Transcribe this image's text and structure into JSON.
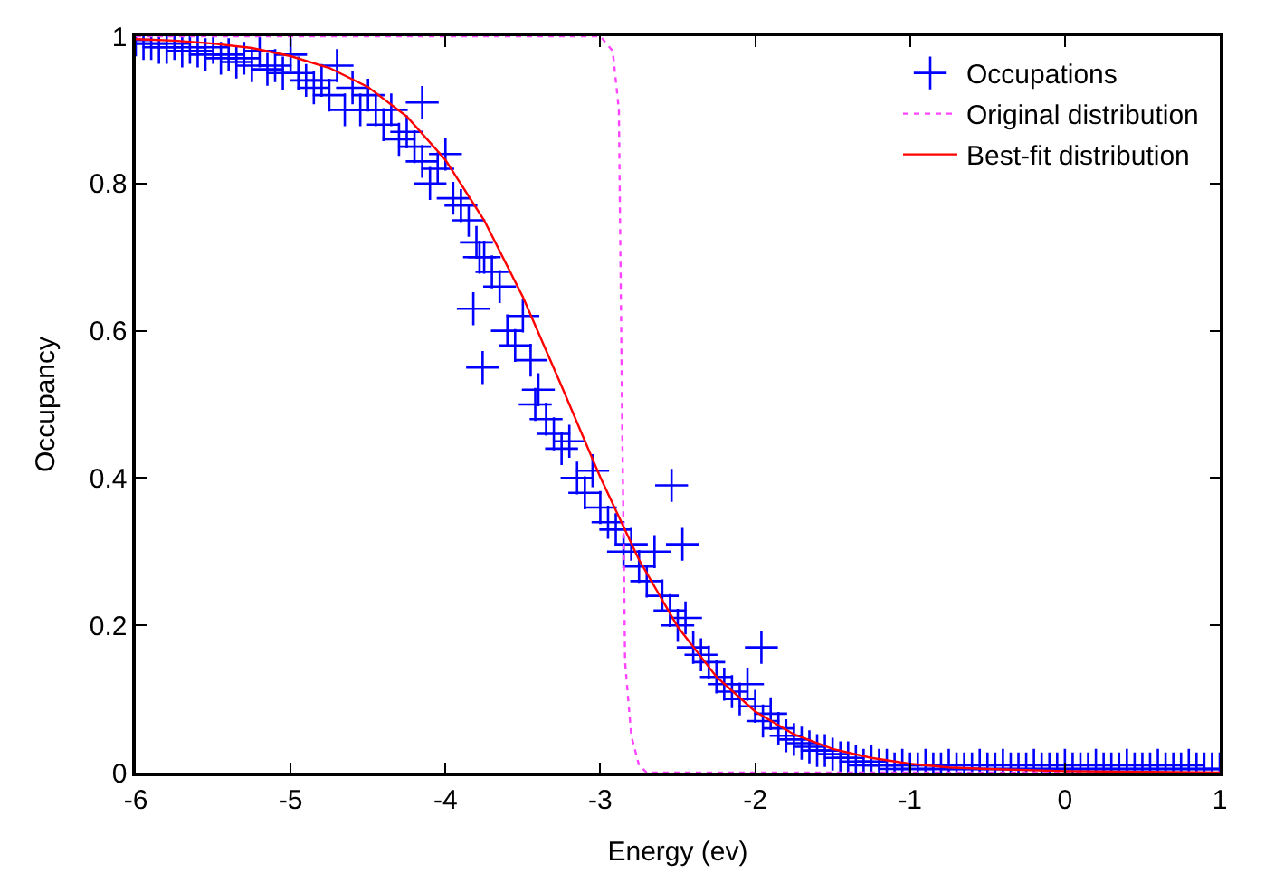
{
  "chart_data": {
    "type": "scatter",
    "xlabel": "Energy (ev)",
    "ylabel": "Occupancy",
    "xlim": [
      -6,
      1
    ],
    "xticks": [
      -6,
      -5,
      -4,
      -3,
      -2,
      -1,
      0,
      1
    ],
    "ylim": [
      0,
      1
    ],
    "yticks": [
      0,
      0.2,
      0.4,
      0.6,
      0.8,
      1
    ],
    "grid": false,
    "legend": "top right",
    "series": [
      {
        "name": "Occupations",
        "marker": "cross",
        "color": "#0000ff",
        "x": [
          -6,
          -5.95,
          -5.9,
          -5.85,
          -5.8,
          -5.75,
          -5.7,
          -5.65,
          -5.6,
          -5.55,
          -5.5,
          -5.45,
          -5.4,
          -5.35,
          -5.3,
          -5.25,
          -5.2,
          -5.15,
          -5.1,
          -5.05,
          -5.0,
          -4.95,
          -4.9,
          -4.85,
          -4.8,
          -4.75,
          -4.7,
          -4.65,
          -4.6,
          -4.55,
          -4.5,
          -4.45,
          -4.4,
          -4.35,
          -4.3,
          -4.25,
          -4.2,
          -4.15,
          -4.15,
          -4.1,
          -4.05,
          -4.0,
          -3.95,
          -3.9,
          -3.85,
          -3.82,
          -3.8,
          -3.78,
          -3.76,
          -3.75,
          -3.7,
          -3.65,
          -3.6,
          -3.55,
          -3.5,
          -3.45,
          -3.42,
          -3.4,
          -3.35,
          -3.3,
          -3.25,
          -3.2,
          -3.15,
          -3.1,
          -3.05,
          -3.0,
          -2.95,
          -2.9,
          -2.85,
          -2.8,
          -2.75,
          -2.7,
          -2.65,
          -2.6,
          -2.54,
          -2.55,
          -2.5,
          -2.47,
          -2.45,
          -2.4,
          -2.35,
          -2.3,
          -2.25,
          -2.2,
          -2.15,
          -2.1,
          -2.05,
          -2.0,
          -1.96,
          -1.95,
          -1.9,
          -1.85,
          -1.8,
          -1.75,
          -1.7,
          -1.65,
          -1.6,
          -1.55,
          -1.5,
          -1.45,
          -1.4,
          -1.35,
          -1.3,
          -1.25,
          -1.2,
          -1.15,
          -1.1,
          -1.05,
          -1.0,
          -0.95,
          -0.9,
          -0.85,
          -0.8,
          -0.75,
          -0.7,
          -0.65,
          -0.6,
          -0.55,
          -0.5,
          -0.45,
          -0.4,
          -0.35,
          -0.3,
          -0.25,
          -0.2,
          -0.15,
          -0.1,
          -0.05,
          0,
          0.05,
          0.1,
          0.15,
          0.2,
          0.25,
          0.3,
          0.35,
          0.4,
          0.45,
          0.5,
          0.55,
          0.6,
          0.65,
          0.7,
          0.75,
          0.8,
          0.85,
          0.9,
          0.95,
          1.0
        ],
        "values": [
          0.995,
          0.99,
          0.99,
          0.985,
          0.985,
          0.99,
          0.98,
          0.985,
          0.98,
          0.975,
          0.985,
          0.97,
          0.975,
          0.965,
          0.97,
          0.96,
          0.98,
          0.955,
          0.96,
          0.95,
          0.975,
          0.95,
          0.94,
          0.93,
          0.94,
          0.92,
          0.96,
          0.9,
          0.93,
          0.9,
          0.92,
          0.9,
          0.88,
          0.9,
          0.86,
          0.87,
          0.85,
          0.83,
          0.91,
          0.8,
          0.82,
          0.84,
          0.78,
          0.77,
          0.75,
          0.63,
          0.72,
          0.7,
          0.55,
          0.7,
          0.68,
          0.66,
          0.6,
          0.58,
          0.62,
          0.56,
          0.5,
          0.52,
          0.48,
          0.46,
          0.44,
          0.45,
          0.4,
          0.38,
          0.41,
          0.36,
          0.34,
          0.33,
          0.3,
          0.31,
          0.28,
          0.26,
          0.3,
          0.24,
          0.39,
          0.22,
          0.2,
          0.31,
          0.21,
          0.17,
          0.16,
          0.15,
          0.13,
          0.12,
          0.11,
          0.1,
          0.12,
          0.09,
          0.17,
          0.07,
          0.08,
          0.06,
          0.05,
          0.045,
          0.04,
          0.035,
          0.03,
          0.03,
          0.025,
          0.02,
          0.02,
          0.015,
          0.01,
          0.015,
          0.01,
          0.01,
          0.005,
          0.01,
          0.005,
          0.005,
          0.01,
          0.005,
          0.005,
          0.01,
          0.005,
          0.005,
          0.005,
          0.01,
          0.005,
          0.005,
          0.01,
          0.005,
          0.005,
          0.005,
          0.01,
          0.005,
          0.005,
          0.005,
          0.01,
          0.005,
          0.005,
          0.005,
          0.01,
          0.005,
          0.005,
          0.005,
          0.01,
          0.005,
          0.005,
          0.005,
          0.01,
          0.005,
          0.005,
          0.005,
          0.01,
          0.005,
          0.005,
          0.005,
          0.005
        ]
      },
      {
        "name": "Original distribution",
        "type": "line",
        "marker": "none",
        "line_style": "dotted",
        "color": "#ff44ff",
        "x": [
          -6,
          -3.0,
          -2.92,
          -2.88,
          -2.86,
          -2.84,
          -2.8,
          -2.75,
          -2.7,
          1
        ],
        "values": [
          1,
          1,
          0.98,
          0.9,
          0.5,
          0.15,
          0.05,
          0.01,
          0,
          0
        ]
      },
      {
        "name": "Best-fit distribution",
        "type": "line",
        "marker": "none",
        "line_style": "solid",
        "color": "#ff0000",
        "x": [
          -6,
          -5.75,
          -5.5,
          -5.25,
          -5,
          -4.75,
          -4.5,
          -4.25,
          -4,
          -3.75,
          -3.5,
          -3.25,
          -3,
          -2.75,
          -2.5,
          -2.25,
          -2,
          -1.75,
          -1.5,
          -1.25,
          -1,
          -0.75,
          -0.5,
          0,
          0.5,
          1
        ],
        "values": [
          0.996,
          0.994,
          0.99,
          0.984,
          0.973,
          0.957,
          0.931,
          0.891,
          0.832,
          0.75,
          0.646,
          0.525,
          0.401,
          0.289,
          0.198,
          0.13,
          0.083,
          0.052,
          0.032,
          0.02,
          0.012,
          0.007,
          0.005,
          0.002,
          0.001,
          0
        ]
      }
    ]
  }
}
